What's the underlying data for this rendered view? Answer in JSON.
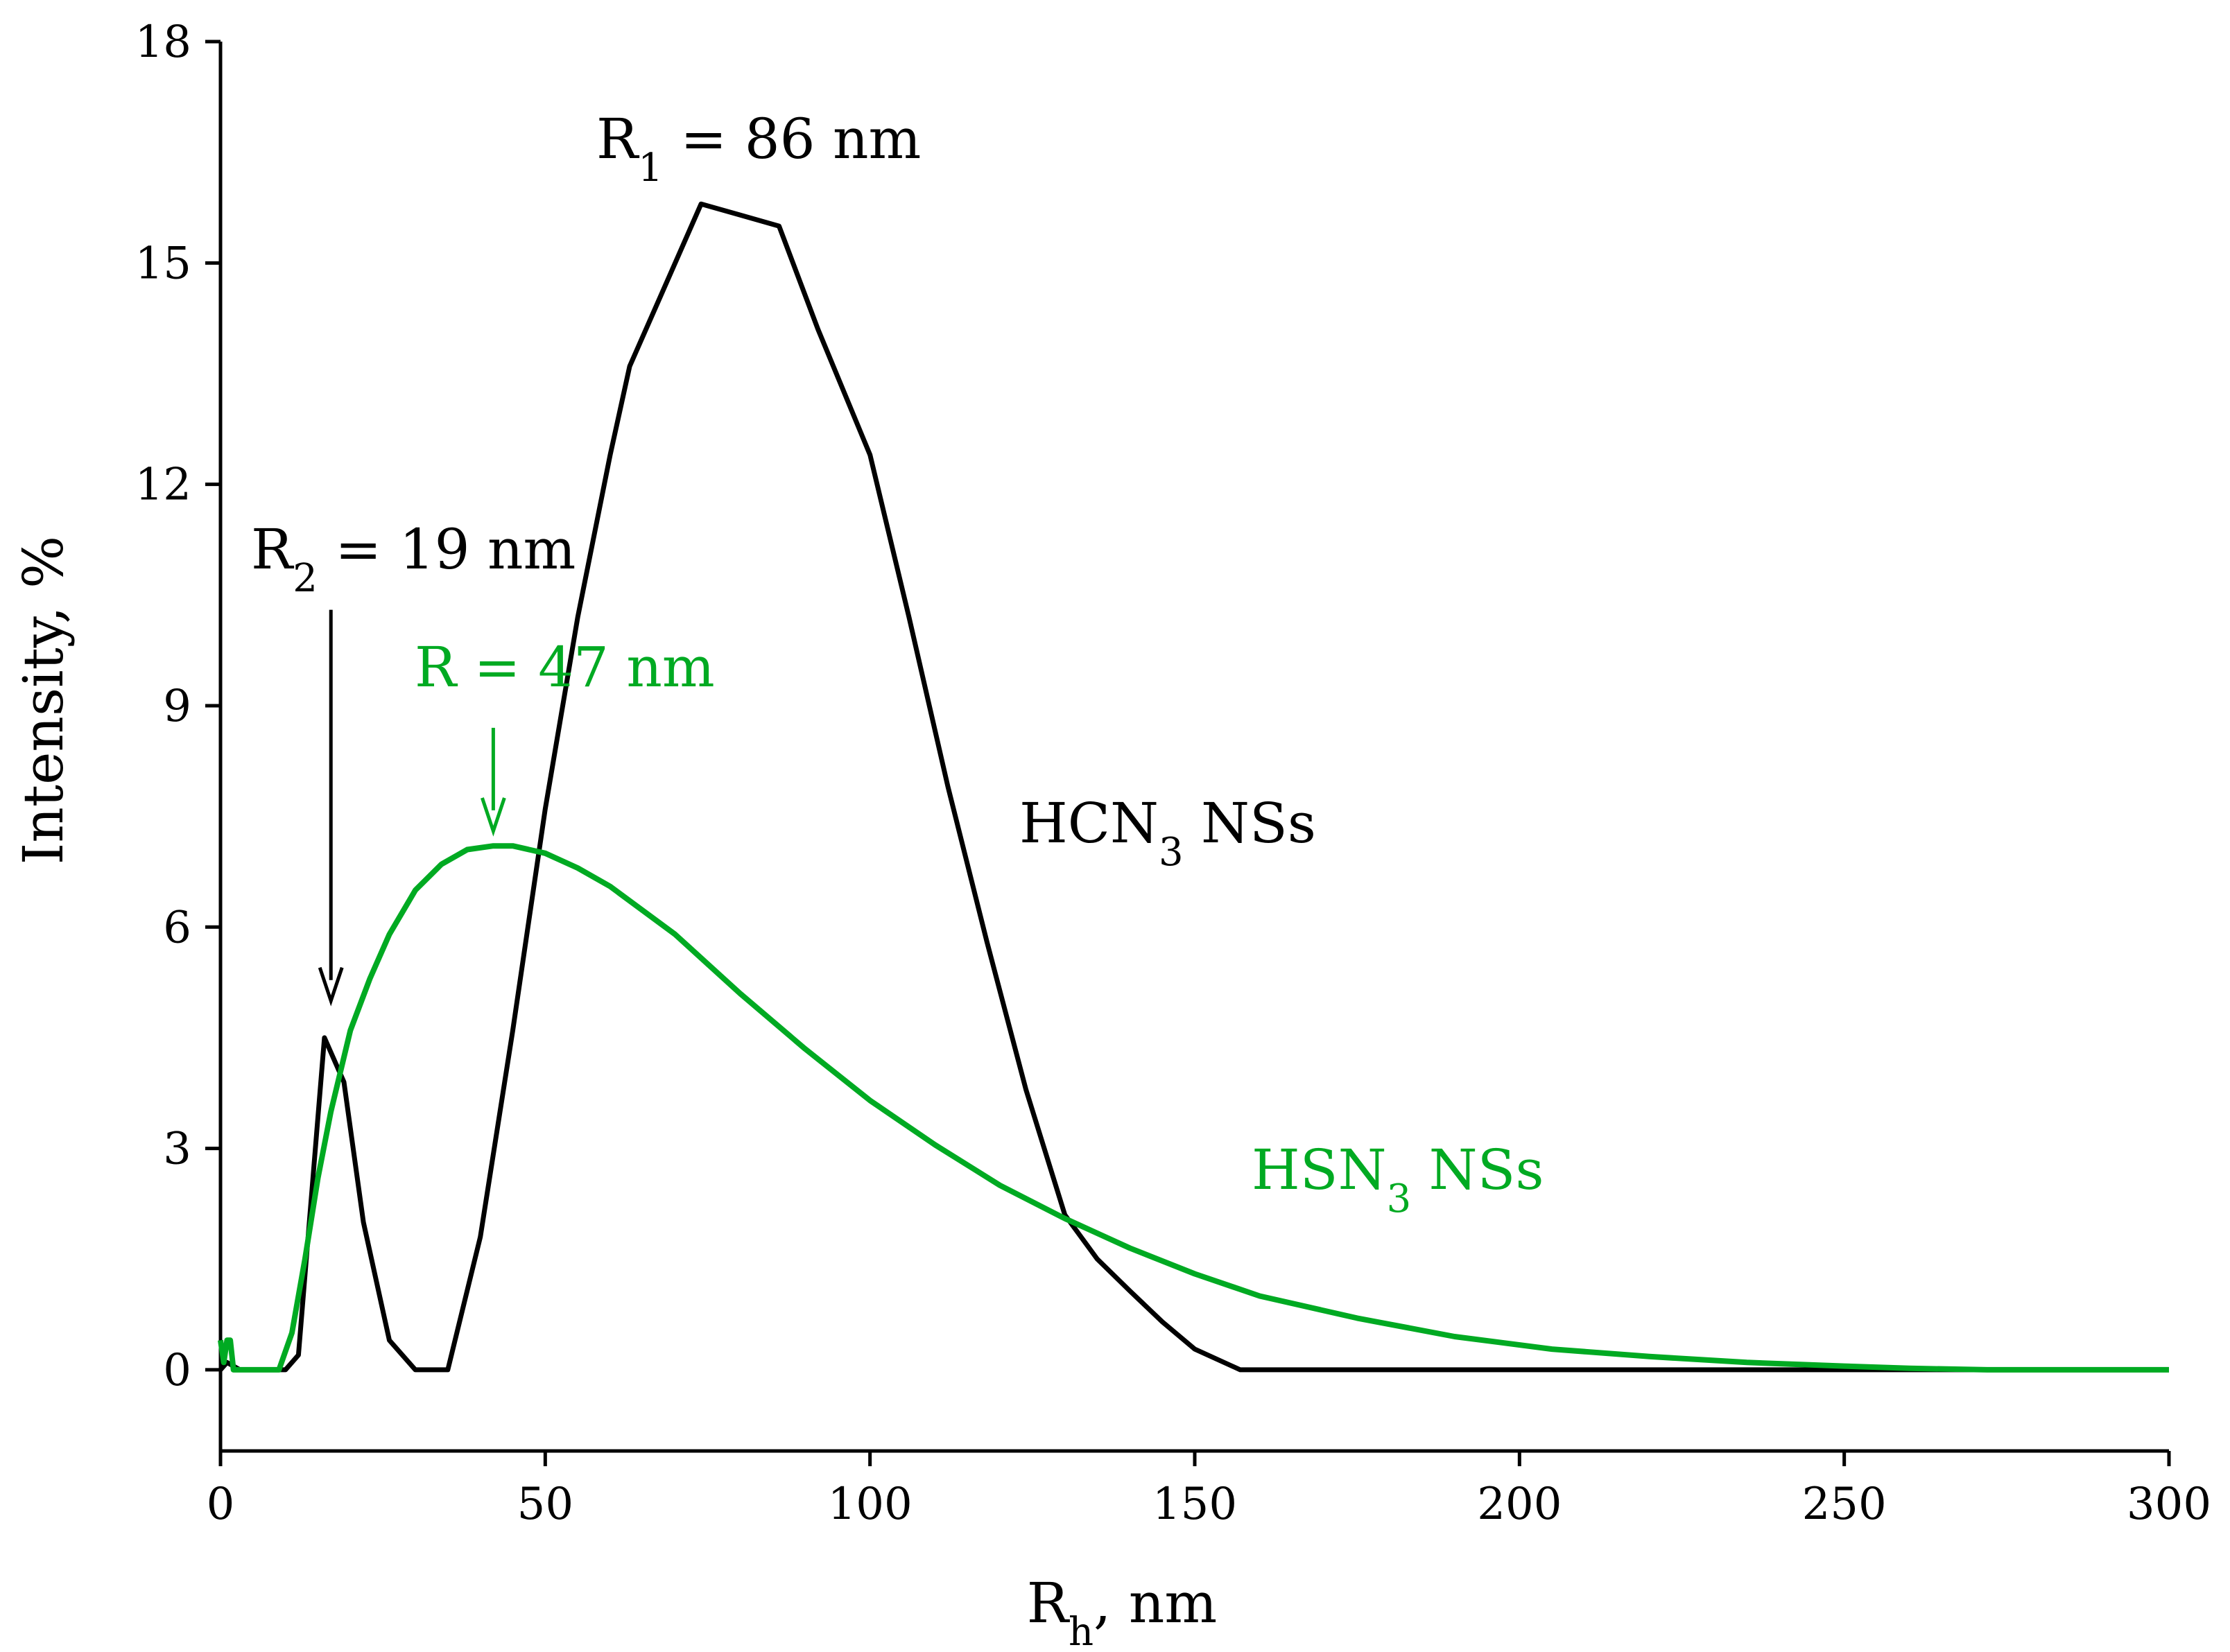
{
  "chart_data": {
    "type": "line",
    "title": "",
    "xlabel": {
      "main": "R",
      "sub": "h",
      "suffix": ", nm"
    },
    "ylabel": "Intensity, %",
    "xlim": [
      0,
      300
    ],
    "ylim": [
      -1.1,
      18
    ],
    "xticks": [
      0,
      50,
      100,
      150,
      200,
      250,
      300
    ],
    "yticks": [
      0,
      3,
      6,
      9,
      12,
      15,
      18
    ],
    "grid": false,
    "series": [
      {
        "name": "HCN3 NSs",
        "color": "#000000",
        "x": [
          0,
          1,
          3,
          5,
          8,
          10,
          12,
          16,
          19,
          22,
          26,
          30,
          35,
          40,
          45,
          50,
          55,
          60,
          63,
          67,
          70,
          74,
          80,
          86,
          92,
          100,
          106,
          112,
          118,
          124,
          130,
          135,
          140,
          145,
          150,
          157,
          170,
          200,
          250,
          300
        ],
        "values": [
          0,
          0.1,
          0,
          0,
          0,
          0,
          0.2,
          4.5,
          3.9,
          2.0,
          0.4,
          0,
          0,
          1.8,
          4.6,
          7.6,
          10.2,
          12.4,
          13.6,
          14.4,
          15.0,
          15.8,
          15.65,
          15.5,
          14.1,
          12.4,
          10.2,
          7.9,
          5.8,
          3.8,
          2.1,
          1.5,
          1.07,
          0.65,
          0.28,
          0,
          0,
          0,
          0,
          0
        ]
      },
      {
        "name": "HSN3 NSs",
        "color": "#00aa22",
        "x": [
          0,
          0.5,
          1,
          1.5,
          2,
          3,
          5,
          9,
          11,
          13,
          15,
          17,
          20,
          23,
          26,
          30,
          34,
          38,
          42,
          45,
          50,
          55,
          60,
          70,
          80,
          90,
          100,
          110,
          120,
          130,
          140,
          150,
          160,
          175,
          190,
          205,
          220,
          235,
          250,
          260,
          272,
          285,
          300
        ],
        "values": [
          0.4,
          0.1,
          0.4,
          0.4,
          0,
          0,
          0,
          0,
          0.5,
          1.5,
          2.6,
          3.5,
          4.6,
          5.3,
          5.9,
          6.5,
          6.85,
          7.05,
          7.1,
          7.1,
          7.0,
          6.8,
          6.55,
          5.9,
          5.1,
          4.35,
          3.65,
          3.05,
          2.5,
          2.05,
          1.65,
          1.3,
          1.0,
          0.7,
          0.45,
          0.28,
          0.18,
          0.1,
          0.05,
          0.02,
          0,
          0,
          0
        ]
      }
    ],
    "annotations": [
      {
        "main": "R",
        "sub": "1",
        "rest": " = 86 nm",
        "color": "#000000"
      },
      {
        "main": "R",
        "sub": "2",
        "rest": " = 19 nm",
        "color": "#000000"
      },
      {
        "main": "R",
        "sub": "",
        "rest": " = 47 nm",
        "color": "#00aa22"
      },
      {
        "main": "HCN",
        "sub": "3",
        "rest": " NSs",
        "color": "#000000"
      },
      {
        "main": "HSN",
        "sub": "3",
        "rest": " NSs",
        "color": "#00aa22"
      }
    ],
    "arrows": [
      {
        "name": "r2-arrow",
        "x": 17,
        "y_from": 10.3,
        "y_to": 5.0,
        "color": "#000000"
      },
      {
        "name": "r-arrow",
        "x": 42,
        "y_from": 8.7,
        "y_to": 7.3,
        "color": "#00aa22"
      }
    ]
  }
}
